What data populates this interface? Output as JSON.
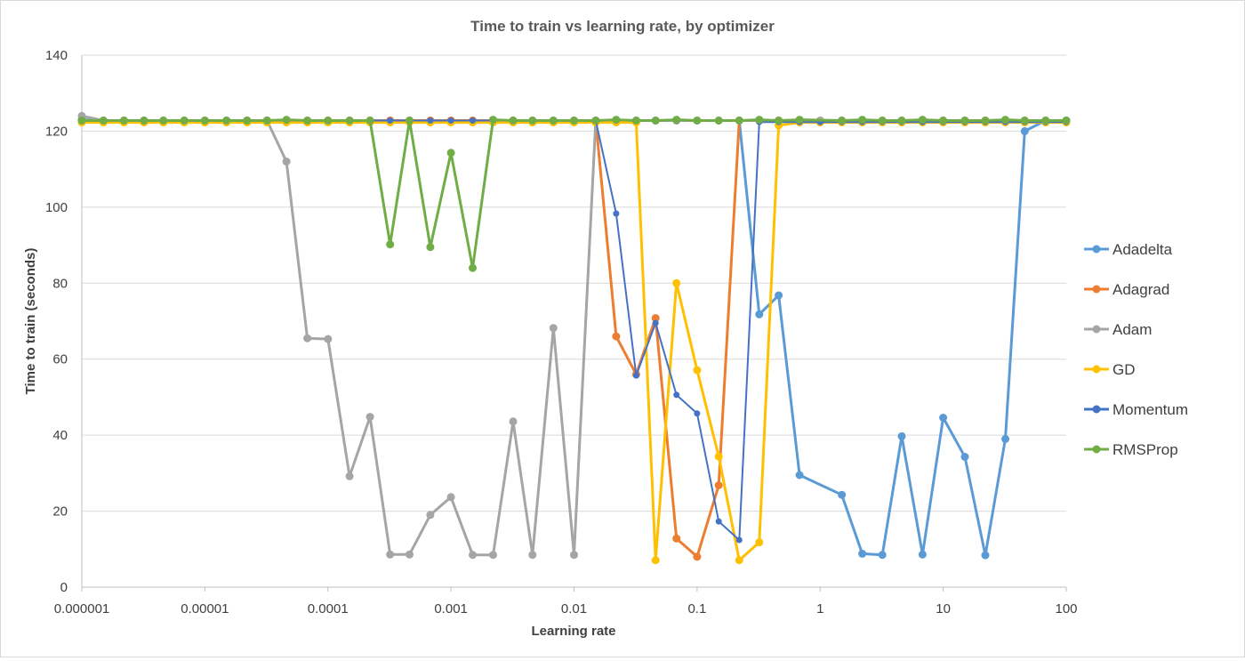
{
  "chart_data": {
    "type": "line",
    "title": "Time to train vs learning rate, by optimizer",
    "xlabel": "Learning rate",
    "ylabel": "Time to train (seconds)",
    "xscale": "log",
    "xlim": [
      1e-06,
      100
    ],
    "ylim": [
      0,
      140
    ],
    "xticks": [
      1e-06,
      1e-05,
      0.0001,
      0.001,
      0.01,
      0.1,
      1,
      10,
      100
    ],
    "xtick_labels": [
      "0.000001",
      "0.00001",
      "0.0001",
      "0.001",
      "0.01",
      "0.1",
      "1",
      "10",
      "100"
    ],
    "yticks": [
      0,
      20,
      40,
      60,
      80,
      100,
      120,
      140
    ],
    "ytick_labels": [
      "0",
      "20",
      "40",
      "60",
      "80",
      "100",
      "120",
      "140"
    ],
    "grid": "horizontal",
    "legend_position": "right",
    "series": [
      {
        "name": "Adadelta",
        "color": "#5b9bd5",
        "x": [
          1e-06,
          1.5e-06,
          2.2e-06,
          3.2e-06,
          4.6e-06,
          6.8e-06,
          1e-05,
          1.5e-05,
          2.2e-05,
          3.2e-05,
          4.6e-05,
          6.8e-05,
          0.0001,
          0.00015,
          0.00022,
          0.00032,
          0.00046,
          0.00068,
          0.001,
          0.0015,
          0.0022,
          0.0032,
          0.0046,
          0.0068,
          0.01,
          0.015,
          0.022,
          0.032,
          0.046,
          0.068,
          0.1,
          0.15,
          0.22,
          0.32,
          0.46,
          0.68,
          1.5,
          2.2,
          3.2,
          4.6,
          6.8,
          10,
          15,
          22,
          32,
          46,
          68,
          100
        ],
        "values": [
          123,
          122.8,
          122.8,
          122.8,
          122.8,
          122.8,
          122.8,
          122.8,
          122.8,
          122.8,
          122.8,
          122.8,
          122.8,
          122.8,
          122.8,
          122.8,
          122.8,
          122.8,
          122.8,
          122.8,
          122.8,
          122.8,
          122.8,
          122.8,
          122.8,
          122.8,
          122.8,
          122.8,
          122.8,
          122.8,
          122.8,
          122.8,
          122.8,
          71.8,
          76.8,
          29.5,
          24.3,
          8.8,
          8.5,
          39.7,
          8.6,
          44.6,
          34.3,
          8.4,
          39,
          120,
          122.8,
          122.8
        ]
      },
      {
        "name": "Adagrad",
        "color": "#ed7d31",
        "x": [
          1e-06,
          1.5e-06,
          2.2e-06,
          3.2e-06,
          4.6e-06,
          6.8e-06,
          1e-05,
          1.5e-05,
          2.2e-05,
          3.2e-05,
          4.6e-05,
          6.8e-05,
          0.0001,
          0.00015,
          0.00022,
          0.00032,
          0.00046,
          0.00068,
          0.001,
          0.0015,
          0.0022,
          0.0032,
          0.0046,
          0.0068,
          0.01,
          0.015,
          0.022,
          0.032,
          0.046,
          0.068,
          0.1,
          0.15,
          0.22,
          0.32,
          0.46,
          0.68,
          1,
          1.5,
          2.2,
          3.2,
          4.6,
          6.8,
          10,
          15,
          22,
          32,
          46,
          68,
          100
        ],
        "values": [
          122.8,
          122.8,
          122.8,
          122.8,
          122.8,
          122.8,
          122.8,
          122.8,
          122.8,
          122.8,
          122.8,
          122.8,
          122.8,
          122.8,
          122.8,
          122.8,
          122.8,
          122.8,
          122.8,
          122.8,
          122.8,
          122.8,
          122.8,
          122.8,
          122.8,
          122.8,
          66,
          56,
          70.8,
          12.8,
          8,
          26.8,
          122.8,
          122.8,
          122.8,
          122.8,
          122.8,
          122.8,
          122.8,
          122.8,
          122.8,
          122.8,
          122.8,
          122.8,
          122.8,
          122.8,
          122.8,
          122.8,
          122.8
        ]
      },
      {
        "name": "Adam",
        "color": "#a5a5a5",
        "x": [
          1e-06,
          1.5e-06,
          2.2e-06,
          3.2e-06,
          4.6e-06,
          6.8e-06,
          1e-05,
          1.5e-05,
          2.2e-05,
          3.2e-05,
          4.6e-05,
          6.8e-05,
          0.0001,
          0.00015,
          0.00022,
          0.00032,
          0.00046,
          0.00068,
          0.001,
          0.0015,
          0.0022,
          0.0032,
          0.0046,
          0.0068,
          0.01,
          0.015,
          0.022,
          0.032,
          0.046,
          0.068,
          0.1,
          0.15,
          0.22,
          0.32,
          0.46,
          0.68,
          1,
          1.5,
          2.2,
          3.2,
          4.6,
          6.8,
          10,
          15,
          22,
          32,
          46,
          68,
          100
        ],
        "values": [
          124,
          122.8,
          122.8,
          122.8,
          122.8,
          122.8,
          122.8,
          122.8,
          122.8,
          122.8,
          112,
          65.5,
          65.3,
          29.2,
          44.8,
          8.6,
          8.6,
          19,
          23.7,
          8.5,
          8.5,
          43.6,
          8.5,
          68.2,
          8.5,
          122.8,
          122.8,
          122.8,
          122.8,
          122.8,
          122.8,
          122.8,
          122.8,
          122.8,
          122.8,
          122.8,
          122.8,
          122.8,
          122.8,
          122.8,
          122.8,
          122.8,
          122.8,
          122.8,
          122.8,
          122.8,
          122.8,
          122.8,
          122.8
        ]
      },
      {
        "name": "GD",
        "color": "#ffc000",
        "x": [
          1e-06,
          1.5e-06,
          2.2e-06,
          3.2e-06,
          4.6e-06,
          6.8e-06,
          1e-05,
          1.5e-05,
          2.2e-05,
          3.2e-05,
          4.6e-05,
          6.8e-05,
          0.0001,
          0.00015,
          0.00022,
          0.00032,
          0.00046,
          0.00068,
          0.001,
          0.0015,
          0.0022,
          0.0032,
          0.0046,
          0.0068,
          0.01,
          0.015,
          0.022,
          0.032,
          0.046,
          0.068,
          0.1,
          0.15,
          0.22,
          0.32,
          0.46,
          0.68,
          1,
          1.5,
          2.2,
          3.2,
          4.6,
          6.8,
          10,
          15,
          22,
          32,
          46,
          68,
          100
        ],
        "values": [
          122.3,
          122.3,
          122.3,
          122.3,
          122.3,
          122.3,
          122.3,
          122.3,
          122.3,
          122.3,
          122.3,
          122.3,
          122.3,
          122.3,
          122.3,
          122.3,
          122.3,
          122.3,
          122.3,
          122.3,
          122.3,
          122.3,
          122.3,
          122.3,
          122.3,
          122.3,
          122.3,
          122.3,
          7.1,
          80,
          57.1,
          34.4,
          7.1,
          11.8,
          121.5,
          122.3,
          122.3,
          122.3,
          122.3,
          122.3,
          122.3,
          122.3,
          122.3,
          122.3,
          122.3,
          122.3,
          122.3,
          122.3,
          122.3
        ]
      },
      {
        "name": "Momentum",
        "color": "#4472c4",
        "x": [
          1e-06,
          1.5e-06,
          2.2e-06,
          3.2e-06,
          4.6e-06,
          6.8e-06,
          1e-05,
          1.5e-05,
          2.2e-05,
          3.2e-05,
          4.6e-05,
          6.8e-05,
          0.0001,
          0.00015,
          0.00022,
          0.00032,
          0.00046,
          0.00068,
          0.001,
          0.0015,
          0.0022,
          0.0032,
          0.0046,
          0.0068,
          0.01,
          0.015,
          0.022,
          0.032,
          0.046,
          0.068,
          0.1,
          0.15,
          0.22,
          0.32,
          0.46,
          0.68,
          1,
          1.5,
          2.2,
          3.2,
          4.6,
          6.8,
          10,
          15,
          22,
          32,
          46,
          68,
          100
        ],
        "values": [
          122.8,
          122.8,
          122.8,
          122.8,
          122.8,
          122.8,
          122.8,
          122.8,
          122.8,
          122.8,
          122.8,
          122.8,
          122.8,
          122.8,
          122.8,
          122.8,
          122.8,
          122.8,
          122.8,
          122.8,
          122.8,
          122.8,
          122.8,
          122.8,
          122.8,
          122.8,
          98.3,
          55.7,
          69.5,
          50.6,
          45.7,
          17.3,
          12.4,
          122.4,
          122.4,
          122.4,
          122.4,
          122.4,
          122.4,
          122.4,
          122.4,
          122.4,
          122.4,
          122.4,
          122.4,
          122.4,
          122.4,
          122.4,
          122.4
        ]
      },
      {
        "name": "RMSProp",
        "color": "#70ad47",
        "x": [
          1e-06,
          1.5e-06,
          2.2e-06,
          3.2e-06,
          4.6e-06,
          6.8e-06,
          1e-05,
          1.5e-05,
          2.2e-05,
          3.2e-05,
          4.6e-05,
          6.8e-05,
          0.0001,
          0.00015,
          0.00022,
          0.00032,
          0.00046,
          0.00068,
          0.001,
          0.0015,
          0.0022,
          0.0032,
          0.0046,
          0.0068,
          0.01,
          0.015,
          0.022,
          0.032,
          0.046,
          0.068,
          0.1,
          0.15,
          0.22,
          0.32,
          0.46,
          0.68,
          1.5,
          2.2,
          3.2,
          4.6,
          6.8,
          10,
          15,
          22,
          32,
          46,
          68,
          100
        ],
        "values": [
          122.8,
          122.8,
          122.8,
          122.8,
          122.8,
          122.8,
          122.8,
          122.8,
          122.8,
          122.8,
          123,
          122.8,
          122.8,
          122.8,
          122.8,
          90.2,
          122.8,
          89.5,
          114.3,
          84,
          123,
          122.8,
          122.8,
          122.8,
          122.8,
          122.8,
          123,
          122.8,
          122.8,
          123,
          122.8,
          122.8,
          122.8,
          123,
          122.8,
          123,
          122.8,
          123,
          122.8,
          122.8,
          123,
          122.8,
          122.8,
          122.8,
          123,
          122.8,
          122.8,
          122.8
        ]
      }
    ]
  }
}
